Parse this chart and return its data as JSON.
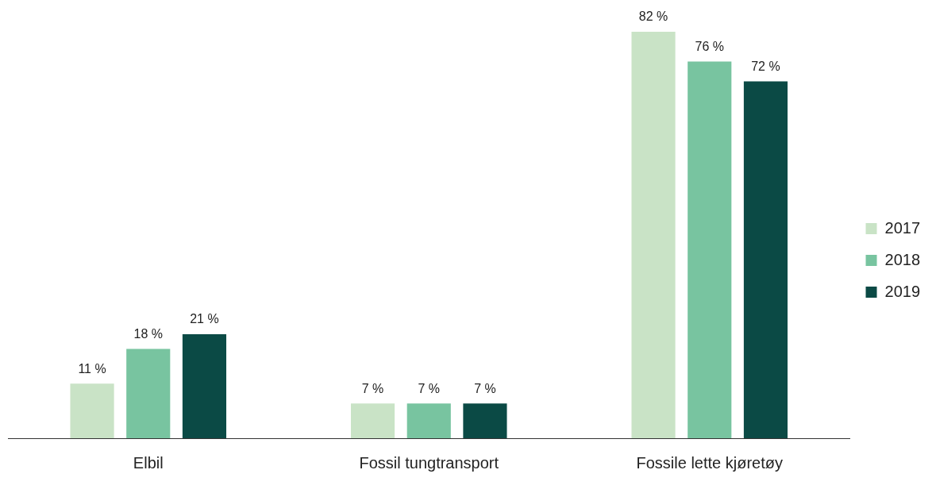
{
  "chart_data": {
    "type": "bar",
    "categories": [
      "Elbil",
      "Fossil tungtransport",
      "Fossile lette kjøretøy"
    ],
    "series": [
      {
        "name": "2017",
        "color": "#c9e3c6",
        "values": [
          11,
          7,
          82
        ],
        "value_labels": [
          "11 %",
          "7 %",
          "82 %"
        ]
      },
      {
        "name": "2018",
        "color": "#78c4a0",
        "values": [
          18,
          7,
          76
        ],
        "value_labels": [
          "18 %",
          "7 %",
          "76 %"
        ]
      },
      {
        "name": "2019",
        "color": "#0b4a45",
        "values": [
          21,
          7,
          72
        ],
        "value_labels": [
          "21 %",
          "7 %",
          "72 %"
        ]
      }
    ],
    "legend": "right",
    "grid": false
  }
}
